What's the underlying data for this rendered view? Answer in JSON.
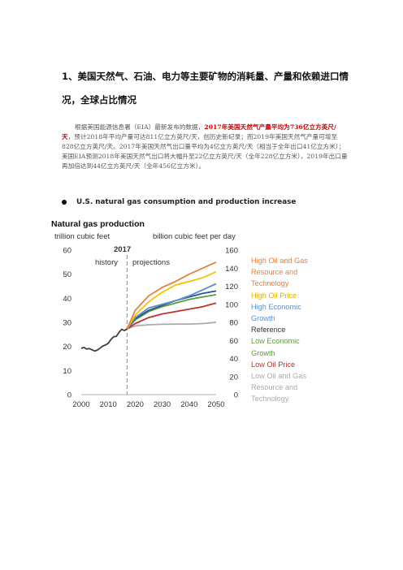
{
  "heading": "1、美国天然气、石油、电力等主要矿物的消耗量、产量和依赖进口情况，全球占比情况",
  "paragraph": {
    "pre": "根据美国能源信息署（EIA）最新发布的数据，",
    "highlight": "2017年美国天然气产量平均为736亿立方英尺/天",
    "post": "，预计2018年平均产量可达811亿立方英尺/天，创历史新纪录；而2019年美国天然气产量可增至828亿立方英尺/天。2017年美国天然气出口量平均为4亿立方英尺/天（相当于全年出口41亿立方米）；美国EIA预测2018年美国天然气出口将大幅升至22亿立方英尺/天（全年228亿立方米），2019年出口量再加倍达到44亿立方英尺/天（全年456亿立方米）。"
  },
  "bullet": "U.S. natural gas consumption and production increase",
  "colors": {
    "high_oil_gas": "#e8803a",
    "high_oil_price": "#f5c400",
    "high_econ": "#5b8fc9",
    "reference": "#2f5597",
    "low_econ": "#5a9e3c",
    "low_oil_price": "#c0302f",
    "low_oil_gas": "#aaaaaa",
    "history": "#404040"
  },
  "chart_data": {
    "type": "line",
    "title": "Natural gas production",
    "left_unit": "trillion cubic feet",
    "right_unit": "billion cubic feet per day",
    "divider_label": "2017",
    "history_label": "history",
    "projections_label": "projections",
    "x_ticks": [
      "2000",
      "2010",
      "2020",
      "2030",
      "2040",
      "2050"
    ],
    "y_ticks_left": [
      "0",
      "10",
      "20",
      "30",
      "40",
      "50",
      "60"
    ],
    "y_ticks_right": [
      "0",
      "20",
      "40",
      "60",
      "80",
      "100",
      "120",
      "140",
      "160"
    ],
    "xlim": [
      2000,
      2050
    ],
    "ylim": [
      0,
      60
    ],
    "divider_x": 2017,
    "history": {
      "x": [
        2000,
        2001,
        2002,
        2003,
        2004,
        2005,
        2006,
        2007,
        2008,
        2009,
        2010,
        2011,
        2012,
        2013,
        2014,
        2015,
        2016,
        2017
      ],
      "y": [
        19.2,
        19.6,
        18.9,
        19.1,
        18.6,
        18.1,
        18.5,
        19.3,
        20.2,
        20.6,
        21.3,
        22.9,
        24.0,
        24.2,
        25.9,
        27.1,
        26.6,
        27.3
      ]
    },
    "series": [
      {
        "name": "High Oil and Gas Resource and Technology",
        "color_key": "high_oil_gas",
        "x": [
          2017,
          2020,
          2025,
          2030,
          2035,
          2040,
          2045,
          2050
        ],
        "y": [
          27.3,
          35,
          41,
          44.5,
          47,
          50,
          52.5,
          55
        ]
      },
      {
        "name": "High Oil Price",
        "color_key": "high_oil_price",
        "x": [
          2017,
          2020,
          2025,
          2030,
          2035,
          2040,
          2045,
          2050
        ],
        "y": [
          27.3,
          33,
          38.5,
          42.5,
          45.5,
          47,
          48.5,
          51
        ]
      },
      {
        "name": "High Economic Growth",
        "color_key": "high_econ",
        "x": [
          2017,
          2020,
          2025,
          2030,
          2035,
          2040,
          2045,
          2050
        ],
        "y": [
          27.3,
          32,
          36,
          37.5,
          39,
          41,
          43.5,
          46
        ]
      },
      {
        "name": "Reference",
        "color_key": "reference",
        "x": [
          2017,
          2020,
          2025,
          2030,
          2035,
          2040,
          2045,
          2050
        ],
        "y": [
          27.3,
          31.5,
          35,
          37,
          39,
          40.5,
          42,
          43
        ]
      },
      {
        "name": "Low Economic Growth",
        "color_key": "low_econ",
        "x": [
          2017,
          2020,
          2025,
          2030,
          2035,
          2040,
          2045,
          2050
        ],
        "y": [
          27.3,
          31,
          34.5,
          36.5,
          38,
          39.5,
          40.5,
          41.5
        ]
      },
      {
        "name": "Low Oil Price",
        "color_key": "low_oil_price",
        "x": [
          2017,
          2020,
          2025,
          2030,
          2035,
          2040,
          2045,
          2050
        ],
        "y": [
          27.3,
          29.5,
          32,
          33.5,
          34.5,
          35.5,
          36.5,
          38
        ]
      },
      {
        "name": "Low Oil and Gas Resource and Technology",
        "color_key": "low_oil_gas",
        "x": [
          2017,
          2020,
          2025,
          2030,
          2035,
          2040,
          2045,
          2050
        ],
        "y": [
          27.3,
          28.5,
          29,
          29.2,
          29.3,
          29.3,
          29.5,
          30
        ]
      }
    ]
  },
  "legend": [
    {
      "lines": [
        "High Oil and Gas",
        "Resource and",
        "Technology"
      ],
      "color_key": "high_oil_gas"
    },
    {
      "lines": [
        "High Oil Price"
      ],
      "color_key": "high_oil_price"
    },
    {
      "lines": [
        "High Economic",
        "Growth"
      ],
      "color_key": "high_econ"
    },
    {
      "lines": [
        "Reference"
      ],
      "color_key": "reference_text"
    },
    {
      "lines": [
        "Low Economic",
        "Growth"
      ],
      "color_key": "low_econ"
    },
    {
      "lines": [
        "Low Oil Price"
      ],
      "color_key": "low_oil_price"
    },
    {
      "lines": [
        "Low Oil and Gas",
        "Resource and",
        "Technology"
      ],
      "color_key": "low_oil_gas"
    }
  ],
  "legend_colors": {
    "high_oil_gas": "#e8803a",
    "high_oil_price": "#e0b000",
    "high_econ": "#5b8fc9",
    "reference_text": "#333333",
    "low_econ": "#5a9e3c",
    "low_oil_price": "#c0302f",
    "low_oil_gas": "#aaaaaa"
  }
}
